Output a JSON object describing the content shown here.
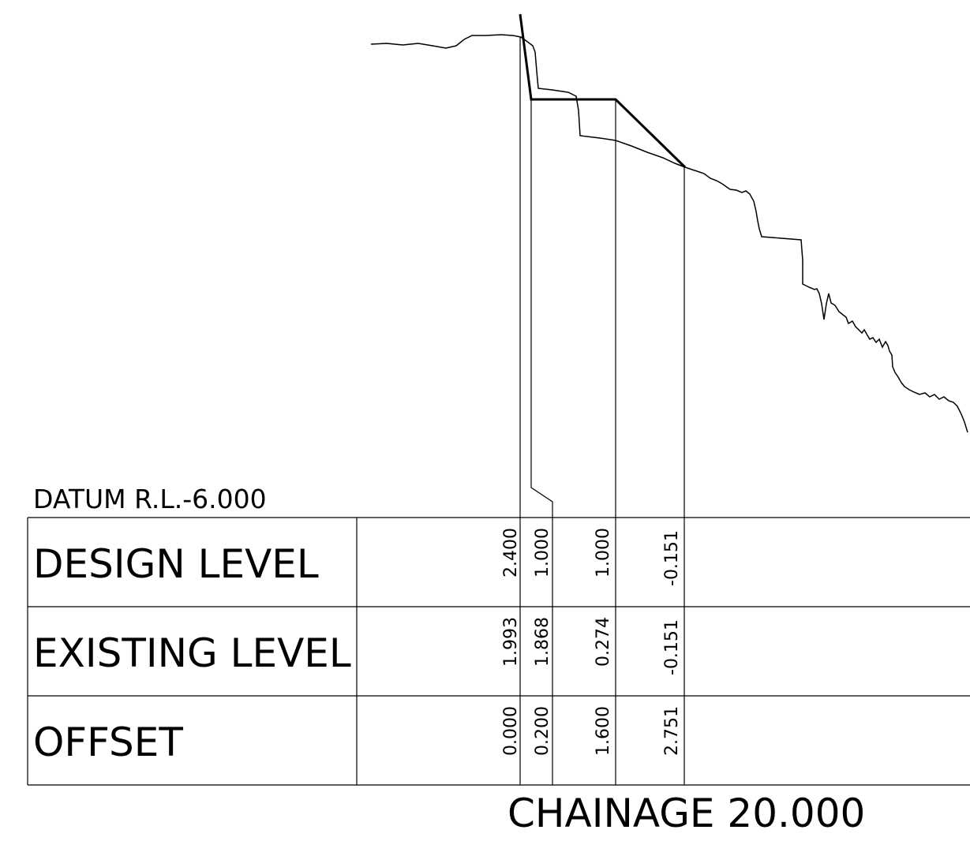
{
  "datum_label": "DATUM R.L.-6.000",
  "rows": [
    {
      "label": "DESIGN LEVEL",
      "values": [
        "2.400",
        "1.000",
        "1.000",
        "-0.151"
      ]
    },
    {
      "label": "EXISTING LEVEL",
      "values": [
        "1.993",
        "1.868",
        "0.274",
        "-0.151"
      ]
    },
    {
      "label": "OFFSET",
      "values": [
        "0.000",
        "0.200",
        "1.600",
        "2.751"
      ]
    }
  ],
  "chainage_label": "CHAINAGE 20.000",
  "colors": {
    "line": "#000000",
    "background": "#ffffff"
  }
}
